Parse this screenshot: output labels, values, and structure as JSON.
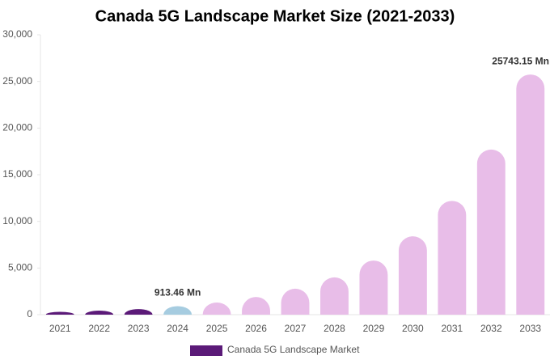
{
  "chart_data": {
    "type": "bar",
    "title": "Canada 5G Landscape Market Size (2021-2033)",
    "categories": [
      "2021",
      "2022",
      "2023",
      "2024",
      "2025",
      "2026",
      "2027",
      "2028",
      "2029",
      "2030",
      "2031",
      "2032",
      "2033"
    ],
    "series": [
      {
        "name": "Canada 5G Landscape Market",
        "color": "#5b1a78",
        "values": [
          300,
          430,
          600,
          913.46,
          1300,
          1900,
          2780,
          4000,
          5800,
          8400,
          12200,
          17700,
          25743.15
        ],
        "value_labels": [
          null,
          null,
          null,
          "913.46 Mn",
          null,
          null,
          null,
          null,
          null,
          null,
          null,
          null,
          "25743.15 Mn"
        ],
        "colors": [
          "#5b1a78",
          "#5b1a78",
          "#5b1a78",
          "#a6cce0",
          "#e8bde8",
          "#e8bde8",
          "#e8bde8",
          "#e8bde8",
          "#e8bde8",
          "#e8bde8",
          "#e8bde8",
          "#e8bde8",
          "#e8bde8"
        ]
      }
    ],
    "ylim": [
      0,
      30000
    ],
    "yticks": [
      0,
      {
        "value": 5000,
        "label": "5,000"
      },
      {
        "value": 10000,
        "label": "10,000"
      },
      {
        "value": 15000,
        "label": "15,000"
      },
      {
        "value": 20000,
        "label": "20,000"
      },
      {
        "value": 25000,
        "label": "25,000"
      },
      {
        "value": 30000,
        "label": "30,000"
      }
    ],
    "grid": false,
    "legend": "bottom"
  }
}
